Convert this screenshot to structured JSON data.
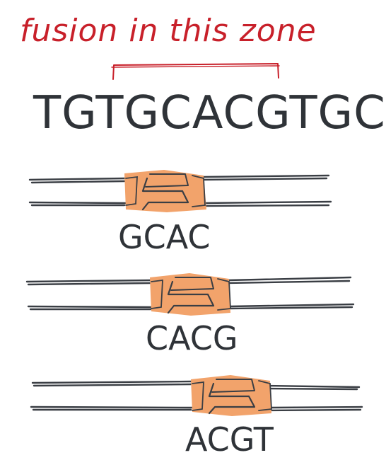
{
  "annotation": {
    "text": "fusion in this zone",
    "color": "#c8202a"
  },
  "sequence": {
    "text": "TGTGCACGTGC",
    "color": "#2f3338"
  },
  "sites": [
    {
      "label": "GCAC"
    },
    {
      "label": "CACG"
    },
    {
      "label": "ACGT"
    }
  ],
  "colors": {
    "strand": "#3a3e44",
    "knot_fill": "#f2a36b",
    "knot_stroke": "#3a3e44",
    "label": "#2f3338"
  }
}
